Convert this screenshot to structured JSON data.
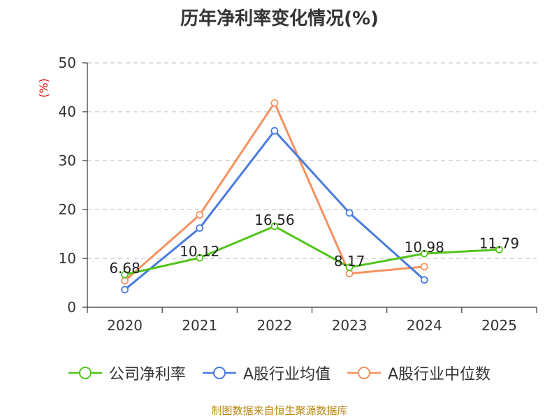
{
  "chart_data": {
    "type": "line",
    "title": "历年净利率变化情况(%)",
    "ylabel": "(%)",
    "xlabel": "",
    "categories": [
      "2020",
      "2021",
      "2022",
      "2023",
      "2024",
      "2025"
    ],
    "ylim": [
      0,
      50
    ],
    "yticks": [
      "0",
      "10",
      "20",
      "30",
      "40",
      "50"
    ],
    "grid": "horizontal-dashed",
    "legend_position": "bottom",
    "series": [
      {
        "name": "公司净利率",
        "color": "#52c41a",
        "values": [
          6.68,
          10.12,
          16.56,
          8.17,
          10.98,
          11.79
        ],
        "labels": [
          "6.68",
          "10.12",
          "16.56",
          "8.17",
          "10.98",
          "11.79"
        ]
      },
      {
        "name": "A股行业均值",
        "color": "#4a7bdc",
        "values": [
          3.6,
          16.2,
          36.1,
          19.3,
          5.6,
          null
        ]
      },
      {
        "name": "A股行业中位数",
        "color": "#f59160",
        "values": [
          5.4,
          18.9,
          41.8,
          6.9,
          8.3,
          null
        ]
      }
    ]
  },
  "source": "制图数据来自恒生聚源数据库"
}
